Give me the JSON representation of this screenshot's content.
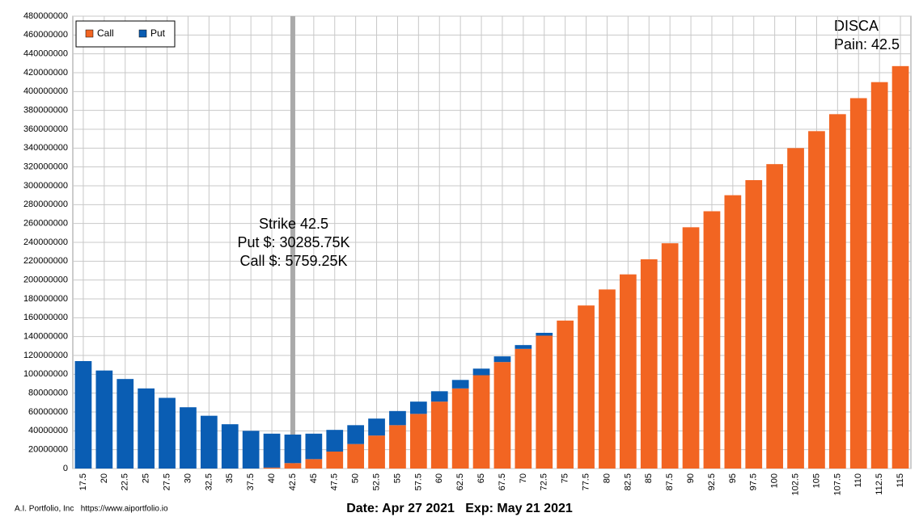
{
  "chart_data": {
    "type": "stacked_bar",
    "title": "DISCA",
    "subtitle": "Pain: 42.5",
    "annotations": [
      "Strike 42.5",
      "Put $: 30285.75K",
      "Call $: 5759.25K"
    ],
    "footer_left": "A.I. Portfolio, Inc   https://www.aiportfolio.io",
    "footer_center": "Date: Apr 27 2021   Exp: May 21 2021",
    "categories": [
      "17.5",
      "20",
      "22.5",
      "25",
      "27.5",
      "30",
      "32.5",
      "35",
      "37.5",
      "40",
      "42.5",
      "45",
      "47.5",
      "50",
      "52.5",
      "55",
      "57.5",
      "60",
      "62.5",
      "65",
      "67.5",
      "70",
      "72.5",
      "75",
      "77.5",
      "80",
      "82.5",
      "85",
      "87.5",
      "90",
      "92.5",
      "95",
      "97.5",
      "100",
      "102.5",
      "105",
      "107.5",
      "110",
      "112.5",
      "115"
    ],
    "series": [
      {
        "name": "Call",
        "color": "#f26522",
        "values": [
          0,
          0,
          0,
          0,
          0,
          0,
          0,
          0,
          0,
          1000000,
          5759250,
          10000000,
          18000000,
          26000000,
          35000000,
          46000000,
          58000000,
          71000000,
          85000000,
          99000000,
          113000000,
          127000000,
          141000000,
          157000000,
          173000000,
          190000000,
          206000000,
          222000000,
          239000000,
          256000000,
          273000000,
          290000000,
          306000000,
          323000000,
          340000000,
          358000000,
          376000000,
          393000000,
          410000000,
          427000000
        ]
      },
      {
        "name": "Put",
        "color": "#0a5db3",
        "values": [
          114000000,
          104000000,
          95000000,
          85000000,
          75000000,
          65000000,
          56000000,
          47000000,
          40000000,
          36000000,
          30285750,
          27000000,
          23000000,
          20000000,
          18000000,
          15000000,
          13000000,
          11000000,
          9000000,
          7000000,
          6000000,
          4000000,
          3000000,
          0,
          0,
          0,
          0,
          0,
          0,
          0,
          0,
          0,
          0,
          0,
          0,
          0,
          0,
          0,
          0,
          0
        ]
      }
    ],
    "ylim": [
      0,
      480000000
    ],
    "yticks": [
      0,
      20000000,
      40000000,
      60000000,
      80000000,
      100000000,
      120000000,
      140000000,
      160000000,
      180000000,
      200000000,
      220000000,
      240000000,
      260000000,
      280000000,
      300000000,
      320000000,
      340000000,
      360000000,
      380000000,
      400000000,
      420000000,
      440000000,
      460000000,
      480000000
    ],
    "grid": true,
    "legend": "top-left"
  }
}
